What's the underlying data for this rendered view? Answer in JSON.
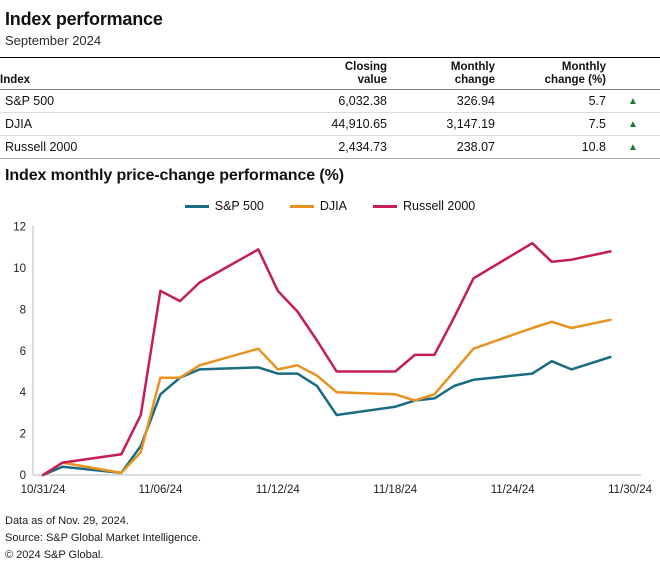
{
  "header": {
    "title": "Index performance",
    "subtitle": "September 2024"
  },
  "table": {
    "headers": [
      "Index",
      "Closing\nvalue",
      "Monthly\nchange",
      "Monthly\nchange (%)"
    ],
    "rows": [
      {
        "name": "S&P 500",
        "closing_value": "6,032.38",
        "monthly_change": "326.94",
        "monthly_change_pct": "5.7",
        "direction": "up",
        "change_icon": "▲"
      },
      {
        "name": "DJIA",
        "closing_value": "44,910.65",
        "monthly_change": "3,147.19",
        "monthly_change_pct": "7.5",
        "direction": "up",
        "change_icon": "▲"
      },
      {
        "name": "Russell 2000",
        "closing_value": "2,434.73",
        "monthly_change": "238.07",
        "monthly_change_pct": "10.8",
        "direction": "up",
        "change_icon": "▲"
      }
    ],
    "up_color": "#147c38"
  },
  "chart_data": {
    "type": "line",
    "title": "Index monthly price-change performance (%)",
    "xlabel": "",
    "ylabel": "",
    "ylim": [
      0,
      12
    ],
    "y_ticks": [
      0,
      2,
      4,
      6,
      8,
      10,
      12
    ],
    "x_tick_labels": [
      "10/31/24",
      "11/06/24",
      "11/12/24",
      "11/18/24",
      "11/24/24",
      "11/30/24"
    ],
    "x_tick_days": [
      0,
      6,
      12,
      18,
      24,
      30
    ],
    "x_day_range": [
      0,
      30
    ],
    "grid": false,
    "legend_position": "top-center",
    "axis_color": "#b8b8b8",
    "dates": [
      "10/31/24",
      "11/01/24",
      "11/04/24",
      "11/05/24",
      "11/06/24",
      "11/07/24",
      "11/08/24",
      "11/11/24",
      "11/12/24",
      "11/13/24",
      "11/14/24",
      "11/15/24",
      "11/18/24",
      "11/19/24",
      "11/20/24",
      "11/21/24",
      "11/22/24",
      "11/25/24",
      "11/26/24",
      "11/27/24",
      "11/29/24"
    ],
    "x_days": [
      0,
      1,
      4,
      5,
      6,
      7,
      8,
      11,
      12,
      13,
      14,
      15,
      18,
      19,
      20,
      21,
      22,
      25,
      26,
      27,
      29
    ],
    "series": [
      {
        "name": "S&P 500",
        "color": "#1a6c82",
        "values": [
          0,
          0.4,
          0.1,
          1.4,
          3.9,
          4.7,
          5.1,
          5.2,
          4.9,
          4.9,
          4.3,
          2.9,
          3.3,
          3.6,
          3.7,
          4.3,
          4.6,
          4.9,
          5.5,
          5.1,
          5.7
        ]
      },
      {
        "name": "DJIA",
        "color": "#e8921f",
        "values": [
          0,
          0.6,
          0.1,
          1.1,
          4.7,
          4.7,
          5.3,
          6.1,
          5.1,
          5.3,
          4.8,
          4.0,
          3.9,
          3.6,
          3.9,
          5.0,
          6.1,
          7.1,
          7.4,
          7.1,
          7.5
        ]
      },
      {
        "name": "Russell 2000",
        "color": "#c51c5c",
        "values": [
          0,
          0.6,
          1.0,
          2.9,
          8.9,
          8.4,
          9.3,
          10.9,
          8.9,
          7.9,
          6.5,
          5.0,
          5.0,
          5.8,
          5.8,
          7.6,
          9.5,
          11.2,
          10.3,
          10.4,
          10.8
        ]
      }
    ]
  },
  "footer": {
    "lines": [
      "Data as of Nov. 29, 2024.",
      "Source: S&P Global Market Intelligence.",
      "© 2024 S&P Global."
    ]
  }
}
